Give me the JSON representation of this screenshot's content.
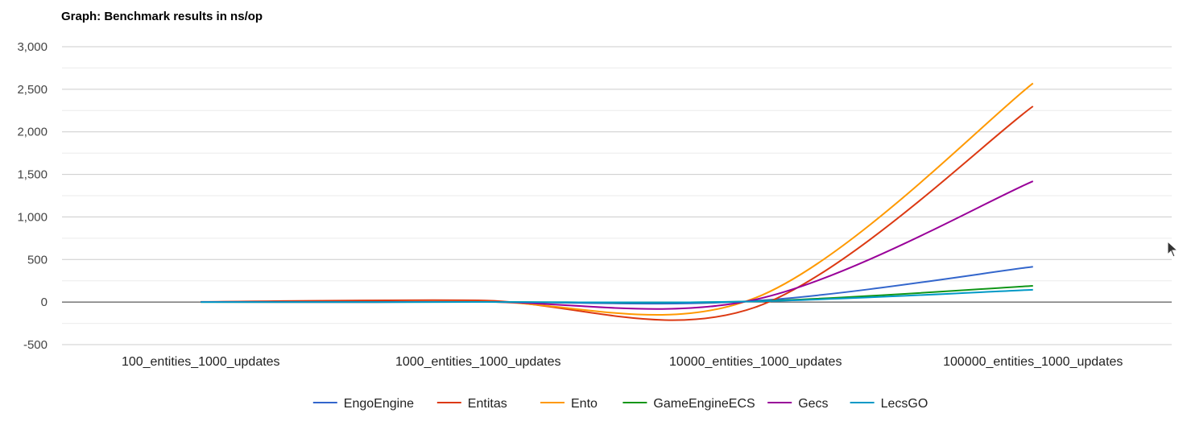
{
  "chart_data": {
    "type": "line",
    "title": "Graph: Benchmark results in ns/op",
    "xlabel": "",
    "ylabel": "",
    "ylim": [
      -500,
      3000
    ],
    "yticks": [
      -500,
      0,
      500,
      1000,
      1500,
      2000,
      2500,
      3000
    ],
    "ytick_labels": [
      "-500",
      "0",
      "500",
      "1,000",
      "1,500",
      "2,000",
      "2,500",
      "3,000"
    ],
    "categories": [
      "100_entities_1000_updates",
      "1000_entities_1000_updates",
      "10000_entities_1000_updates",
      "100000_entities_1000_updates"
    ],
    "legend_position": "bottom",
    "series": [
      {
        "name": "EngoEngine",
        "color": "#3366cc",
        "values": [
          1,
          2,
          15,
          415
        ]
      },
      {
        "name": "Entitas",
        "color": "#dc3912",
        "values": [
          2,
          20,
          -60,
          2300
        ]
      },
      {
        "name": "Ento",
        "color": "#ff9900",
        "values": [
          1,
          5,
          50,
          2570
        ]
      },
      {
        "name": "GameEngineECS",
        "color": "#109618",
        "values": [
          0,
          1,
          10,
          190
        ]
      },
      {
        "name": "Gecs",
        "color": "#990099",
        "values": [
          1,
          3,
          30,
          1420
        ]
      },
      {
        "name": "LecsGO",
        "color": "#0099c6",
        "values": [
          0,
          1,
          8,
          145
        ]
      }
    ]
  }
}
